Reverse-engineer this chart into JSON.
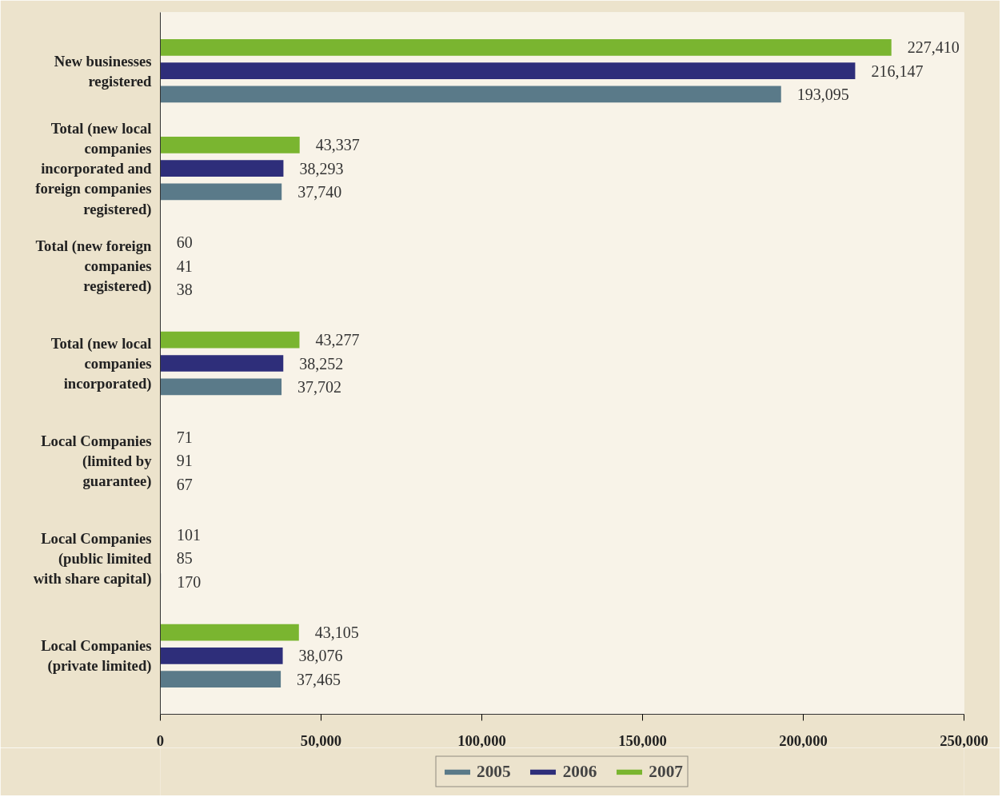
{
  "chart_data": {
    "type": "bar",
    "orientation": "horizontal",
    "categories": [
      "New businesses registered",
      "Total (new local companies incorporated and foreign companies registered)",
      "Total (new foreign companies registered)",
      "Total (new local companies incorporated)",
      "Local Companies (limited by guarantee)",
      "Local Companies (public limited with share capital)",
      "Local Companies (private limited)"
    ],
    "series": [
      {
        "name": "2005",
        "color": "#5a7a89",
        "values": [
          193095,
          37740,
          38,
          37702,
          67,
          170,
          37465
        ],
        "value_labels": [
          "193,095",
          "37,740",
          "38",
          "37,702",
          "67",
          "170",
          "37,465"
        ]
      },
      {
        "name": "2006",
        "color": "#2e2e7a",
        "values": [
          216147,
          38293,
          41,
          38252,
          91,
          85,
          38076
        ],
        "value_labels": [
          "216,147",
          "38,293",
          "41",
          "38,252",
          "91",
          "85",
          "38,076"
        ]
      },
      {
        "name": "2007",
        "color": "#7ab530",
        "values": [
          227410,
          43337,
          60,
          43277,
          71,
          101,
          43105
        ],
        "value_labels": [
          "227,410",
          "43,337",
          "60",
          "43,277",
          "71",
          "101",
          "43,105"
        ]
      }
    ],
    "xlim": [
      0,
      250000
    ],
    "xticks": [
      {
        "value": 0,
        "label": "0"
      },
      {
        "value": 50000,
        "label": "50,000"
      },
      {
        "value": 100000,
        "label": "100,000"
      },
      {
        "value": 150000,
        "label": "150,000"
      },
      {
        "value": 200000,
        "label": "200,000"
      },
      {
        "value": 250000,
        "label": "250,000"
      }
    ],
    "legend": "bottom",
    "grid": false
  }
}
